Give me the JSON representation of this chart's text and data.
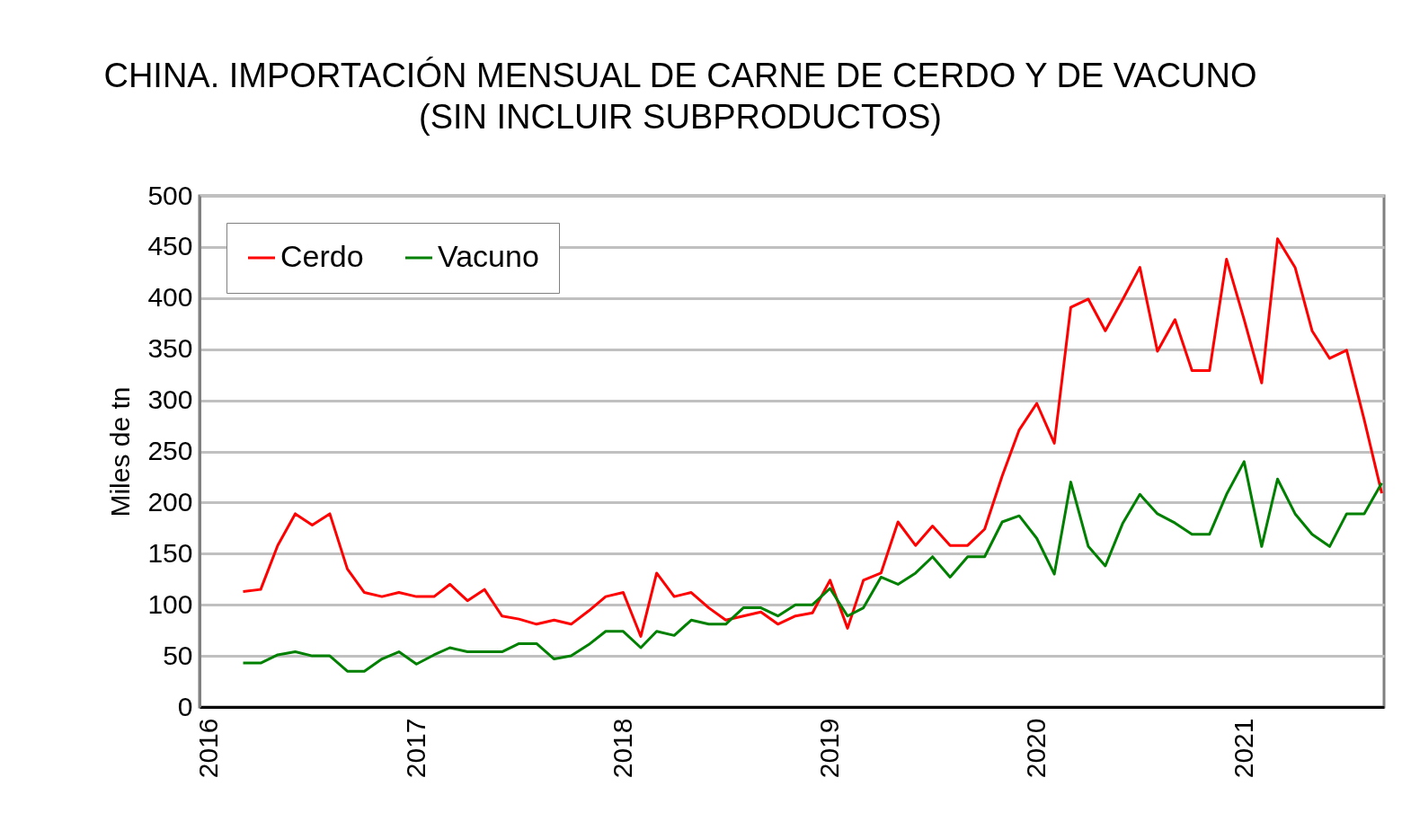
{
  "chart_data": {
    "type": "line",
    "title": "CHINA. IMPORTACIÓN MENSUAL DE CARNE DE CERDO Y DE VACUNO",
    "subtitle": "(SIN INCLUIR SUBPRODUCTOS)",
    "ylabel": "Miles de tn",
    "x": [
      "2016-03",
      "2016-04",
      "2016-05",
      "2016-06",
      "2016-07",
      "2016-08",
      "2016-09",
      "2016-10",
      "2016-11",
      "2016-12",
      "2017-01",
      "2017-02",
      "2017-03",
      "2017-04",
      "2017-05",
      "2017-06",
      "2017-07",
      "2017-08",
      "2017-09",
      "2017-10",
      "2017-11",
      "2017-12",
      "2018-01",
      "2018-02",
      "2018-03",
      "2018-04",
      "2018-05",
      "2018-06",
      "2018-07",
      "2018-08",
      "2018-09",
      "2018-10",
      "2018-11",
      "2018-12",
      "2019-01",
      "2019-02",
      "2019-03",
      "2019-04",
      "2019-05",
      "2019-06",
      "2019-07",
      "2019-08",
      "2019-09",
      "2019-10",
      "2019-11",
      "2019-12",
      "2020-01",
      "2020-02",
      "2020-03",
      "2020-04",
      "2020-05",
      "2020-06",
      "2020-07",
      "2020-08",
      "2020-09",
      "2020-10",
      "2020-11",
      "2020-12",
      "2021-01",
      "2021-02",
      "2021-03",
      "2021-04",
      "2021-05",
      "2021-06",
      "2021-07",
      "2021-08",
      "2021-09"
    ],
    "series": [
      {
        "name": "Cerdo",
        "color": "#ff0000",
        "values": [
          113,
          115,
          158,
          189,
          178,
          189,
          135,
          112,
          108,
          112,
          108,
          108,
          120,
          104,
          115,
          89,
          86,
          81,
          85,
          81,
          94,
          108,
          112,
          69,
          131,
          108,
          112,
          97,
          85,
          89,
          93,
          81,
          89,
          92,
          124,
          77,
          124,
          131,
          181,
          158,
          177,
          158,
          158,
          174,
          226,
          271,
          297,
          258,
          391,
          399,
          368,
          399,
          430,
          348,
          379,
          329,
          329,
          438,
          379,
          317,
          458,
          430,
          368,
          341,
          349,
          281,
          209
        ]
      },
      {
        "name": "Vacuno",
        "color": "#008000",
        "values": [
          43,
          43,
          51,
          54,
          50,
          50,
          35,
          35,
          47,
          54,
          42,
          51,
          58,
          54,
          54,
          54,
          62,
          62,
          47,
          50,
          61,
          74,
          74,
          58,
          74,
          70,
          85,
          81,
          81,
          97,
          97,
          89,
          100,
          100,
          116,
          89,
          97,
          127,
          120,
          131,
          147,
          127,
          147,
          147,
          181,
          187,
          165,
          130,
          220,
          157,
          138,
          180,
          208,
          189,
          180,
          169,
          169,
          208,
          240,
          157,
          223,
          189,
          169,
          157,
          189,
          189,
          219
        ]
      }
    ],
    "xlim": [
      "2015-12-15",
      "2021-09-05"
    ],
    "xticks": [
      "2016",
      "2017",
      "2018",
      "2019",
      "2020",
      "2021"
    ],
    "ylim": [
      0,
      500
    ],
    "yticks": [
      0,
      50,
      100,
      150,
      200,
      250,
      300,
      350,
      400,
      450,
      500
    ],
    "grid": "y",
    "legend": "top left",
    "line_style": "solid",
    "marker": "none"
  }
}
